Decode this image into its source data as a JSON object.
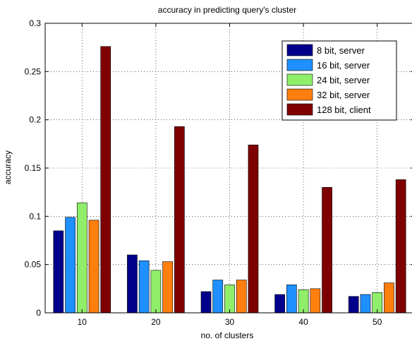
{
  "chart_data": {
    "type": "bar",
    "title": "accuracy in predicting query's cluster",
    "xlabel": "no. of clusters",
    "ylabel": "accuracy",
    "categories": [
      "10",
      "20",
      "30",
      "40",
      "50"
    ],
    "ylim": [
      0,
      0.3
    ],
    "yticks": [
      "0",
      "0.05",
      "0.1",
      "0.15",
      "0.2",
      "0.25",
      "0.3"
    ],
    "grid": true,
    "legend_position": "top-right",
    "series": [
      {
        "name": "8 bit, server",
        "color": "#00008b",
        "values": [
          0.085,
          0.06,
          0.022,
          0.019,
          0.017
        ]
      },
      {
        "name": "16 bit, server",
        "color": "#1e90ff",
        "values": [
          0.099,
          0.054,
          0.034,
          0.029,
          0.019
        ]
      },
      {
        "name": "24 bit, server",
        "color": "#90ee6a",
        "values": [
          0.114,
          0.044,
          0.029,
          0.024,
          0.021
        ]
      },
      {
        "name": "32 bit, server",
        "color": "#ff7f0e",
        "values": [
          0.096,
          0.053,
          0.034,
          0.025,
          0.031
        ]
      },
      {
        "name": "128 bit, client",
        "color": "#7f0000",
        "values": [
          0.276,
          0.193,
          0.174,
          0.13,
          0.138
        ]
      }
    ]
  }
}
